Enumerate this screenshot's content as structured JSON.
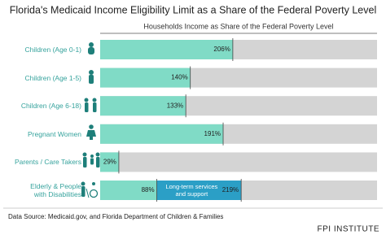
{
  "chart_data": {
    "type": "hbar",
    "title": "Florida's Medicaid Income Eligibility Limit as a Share of the Federal Poverty Level",
    "subtitle": "Households Income as Share of the Federal Poverty Level",
    "categories": [
      "Children (Age 0-1)",
      "Children (Age 1-5)",
      "Children (Age 6-18)",
      "Pregnant Women",
      "Parents / Care Takers",
      "Elderly & People\nwith Disabilities"
    ],
    "series": [
      {
        "color": "#80dbc6",
        "values": [
          206,
          140,
          133,
          191,
          29,
          88
        ],
        "value_labels": [
          "206%",
          "140%",
          "133%",
          "191%",
          "29%",
          "88%"
        ]
      },
      {
        "name": "Long-term services and support",
        "color": "#2b9fc6",
        "values": [
          null,
          null,
          null,
          null,
          null,
          219
        ],
        "value_labels": [
          null,
          null,
          null,
          null,
          null,
          "219%"
        ]
      }
    ],
    "xlim": [
      0,
      430
    ],
    "track_color": "#d4d4d4",
    "source": "Data Source: Medicaid.gov, and Florida Department of Children & Families",
    "brand": "FPI INSTITUTE"
  }
}
